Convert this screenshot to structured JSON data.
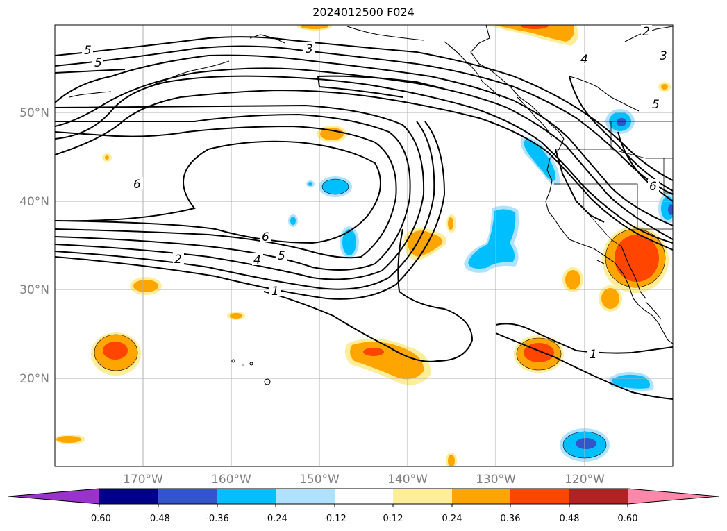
{
  "title": "2024012500 F024",
  "map": {
    "longitude_labels": [
      "170°W",
      "160°W",
      "150°W",
      "140°W",
      "130°W",
      "120°W"
    ],
    "latitude_labels": [
      "50°N",
      "40°N",
      "30°N",
      "20°N"
    ],
    "contour_labels": [
      "5",
      "5",
      "3",
      "2",
      "3",
      "4",
      "5",
      "6",
      "6",
      "6",
      "5",
      "4",
      "2",
      "1",
      "1"
    ]
  },
  "colorbar": {
    "tick_labels": [
      "-0.60",
      "-0.48",
      "-0.36",
      "-0.24",
      "-0.12",
      "0.12",
      "0.24",
      "0.36",
      "0.48",
      "0.60"
    ],
    "colors": [
      "#9933cc",
      "#00008b",
      "#3355cc",
      "#00bfff",
      "#b0e2ff",
      "#ffffff",
      "#ffee99",
      "#ffa500",
      "#ff4500",
      "#b22222",
      "#ff88aa"
    ]
  },
  "colors": {
    "contour": "#000000",
    "grid": "#b0b0b0",
    "axis_label": "#808080"
  }
}
